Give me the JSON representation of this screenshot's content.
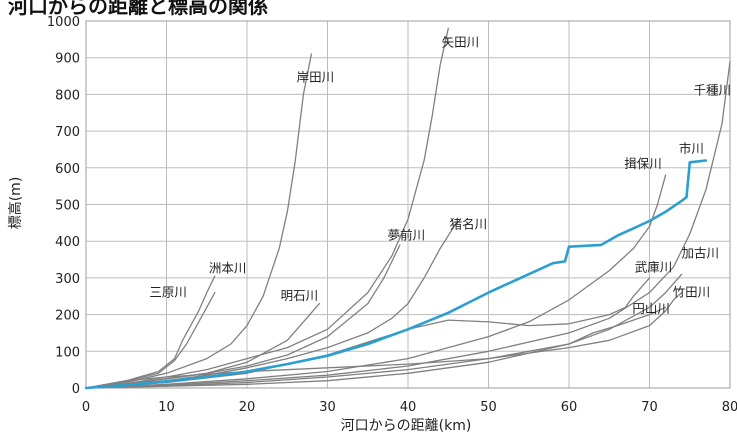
{
  "chart_data": {
    "type": "line",
    "title": "河口からの距離と標高の関係",
    "xlabel": "河口からの距離(km)",
    "ylabel": "標高(m)",
    "xlim": [
      0,
      80
    ],
    "ylim": [
      0,
      1000
    ],
    "xticks": [
      0,
      10,
      20,
      30,
      40,
      50,
      60,
      70,
      80
    ],
    "yticks": [
      0,
      100,
      200,
      300,
      400,
      500,
      600,
      700,
      800,
      900,
      1000
    ],
    "grid": true,
    "colors": {
      "highlight": "#2a9fd0",
      "other": "#808080",
      "grid": "#bdbdbd"
    },
    "series": [
      {
        "name": "三原川",
        "x": [
          0,
          5,
          9,
          11,
          12,
          13,
          14,
          15,
          16
        ],
        "y": [
          0,
          20,
          45,
          80,
          130,
          170,
          210,
          260,
          305
        ]
      },
      {
        "name": "洲本川",
        "x": [
          0,
          5,
          9,
          11,
          12.5,
          14,
          15,
          16
        ],
        "y": [
          0,
          18,
          40,
          75,
          120,
          180,
          220,
          260
        ]
      },
      {
        "name": "岸田川",
        "x": [
          0,
          5,
          10,
          15,
          18,
          20,
          22,
          24,
          25,
          26,
          27,
          28
        ],
        "y": [
          0,
          15,
          40,
          80,
          120,
          170,
          250,
          380,
          480,
          620,
          800,
          910
        ]
      },
      {
        "name": "明石川",
        "x": [
          0,
          5,
          10,
          15,
          20,
          25,
          27,
          29
        ],
        "y": [
          0,
          10,
          25,
          40,
          70,
          130,
          180,
          230
        ]
      },
      {
        "name": "夢前川",
        "x": [
          0,
          5,
          10,
          15,
          20,
          25,
          30,
          35,
          37,
          39
        ],
        "y": [
          0,
          10,
          25,
          40,
          60,
          90,
          140,
          230,
          300,
          390
        ]
      },
      {
        "name": "矢田川",
        "x": [
          0,
          5,
          10,
          15,
          20,
          25,
          30,
          35,
          38,
          40,
          42,
          43,
          44,
          45
        ],
        "y": [
          0,
          12,
          30,
          50,
          80,
          110,
          160,
          260,
          360,
          460,
          620,
          740,
          880,
          980
        ]
      },
      {
        "name": "猪名川",
        "x": [
          0,
          5,
          10,
          15,
          20,
          25,
          30,
          35,
          38,
          40,
          42,
          44,
          46
        ],
        "y": [
          0,
          8,
          20,
          35,
          55,
          80,
          110,
          150,
          190,
          230,
          300,
          380,
          450
        ]
      },
      {
        "name": "市川",
        "x": [
          0,
          5,
          10,
          15,
          20,
          25,
          30,
          35,
          40,
          45,
          50,
          55,
          58,
          59.5,
          60,
          64,
          66,
          70,
          72,
          74,
          74.6,
          75,
          77
        ],
        "y": [
          0,
          8,
          18,
          30,
          45,
          65,
          88,
          120,
          160,
          205,
          260,
          310,
          340,
          345,
          385,
          390,
          415,
          455,
          480,
          510,
          520,
          615,
          620
        ]
      },
      {
        "name": "揖保川",
        "x": [
          0,
          10,
          20,
          30,
          40,
          50,
          55,
          60,
          65,
          68,
          70,
          71,
          72
        ],
        "y": [
          0,
          10,
          25,
          45,
          80,
          140,
          180,
          240,
          320,
          380,
          440,
          500,
          580
        ]
      },
      {
        "name": "千種川",
        "x": [
          0,
          10,
          20,
          30,
          40,
          50,
          60,
          65,
          70,
          73,
          75,
          77,
          79,
          80
        ],
        "y": [
          0,
          8,
          20,
          35,
          60,
          100,
          150,
          190,
          260,
          330,
          420,
          540,
          720,
          890
        ]
      },
      {
        "name": "加古川",
        "x": [
          0,
          10,
          20,
          30,
          40,
          50,
          60,
          65,
          70,
          72,
          74
        ],
        "y": [
          0,
          6,
          15,
          30,
          50,
          80,
          120,
          160,
          220,
          260,
          310
        ]
      },
      {
        "name": "武庫川",
        "x": [
          0,
          10,
          20,
          30,
          40,
          45,
          50,
          55,
          60,
          65,
          67,
          68,
          70
        ],
        "y": [
          0,
          15,
          40,
          90,
          160,
          185,
          180,
          170,
          175,
          200,
          220,
          250,
          300
        ]
      },
      {
        "name": "円山川",
        "x": [
          0,
          10,
          20,
          30,
          40,
          50,
          60,
          63,
          66,
          68,
          70,
          72
        ],
        "y": [
          0,
          5,
          10,
          20,
          40,
          70,
          120,
          150,
          170,
          185,
          200,
          220
        ]
      },
      {
        "name": "竹田川",
        "x": [
          0,
          5,
          10,
          20,
          30,
          40,
          50,
          60,
          65,
          70,
          72,
          73,
          74
        ],
        "y": [
          0,
          20,
          30,
          45,
          55,
          65,
          80,
          110,
          130,
          170,
          210,
          240,
          260
        ]
      }
    ],
    "annotations": [
      {
        "text": "三原川",
        "x": 10.2,
        "y": 250
      },
      {
        "text": "洲本川",
        "x": 17.6,
        "y": 315
      },
      {
        "text": "岸田川",
        "x": 28.5,
        "y": 835
      },
      {
        "text": "明石川",
        "x": 26.5,
        "y": 240
      },
      {
        "text": "夢前川",
        "x": 39.8,
        "y": 405
      },
      {
        "text": "矢田川",
        "x": 46.5,
        "y": 930
      },
      {
        "text": "猪名川",
        "x": 47.5,
        "y": 435
      },
      {
        "text": "市川",
        "x": 75.2,
        "y": 640
      },
      {
        "text": "揖保川",
        "x": 69.2,
        "y": 600
      },
      {
        "text": "千種川",
        "x": 77.8,
        "y": 800
      },
      {
        "text": "加古川",
        "x": 76.3,
        "y": 355
      },
      {
        "text": "武庫川",
        "x": 70.5,
        "y": 318
      },
      {
        "text": "円山川",
        "x": 70.2,
        "y": 205
      },
      {
        "text": "竹田川",
        "x": 75.2,
        "y": 250
      }
    ]
  }
}
